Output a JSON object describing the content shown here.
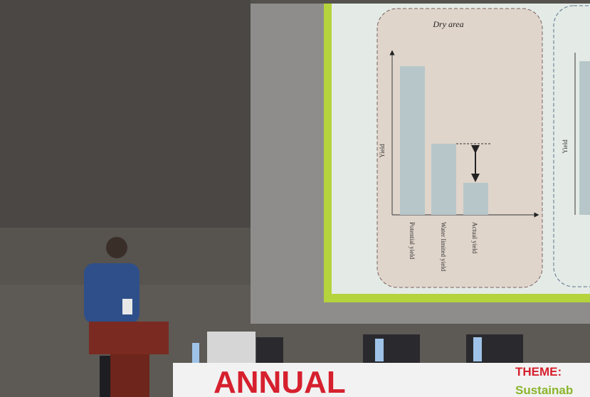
{
  "slide": {
    "panel_title": "Dry area",
    "y_axis_label": "Yield",
    "bar_labels": [
      "Potential yield",
      "Water limited yield",
      "Actual yield"
    ],
    "second_panel_y_axis_label": "Yield"
  },
  "banner": {
    "title": "ANNUAL",
    "theme_label": "THEME:",
    "theme_text": "Sustainab"
  }
}
